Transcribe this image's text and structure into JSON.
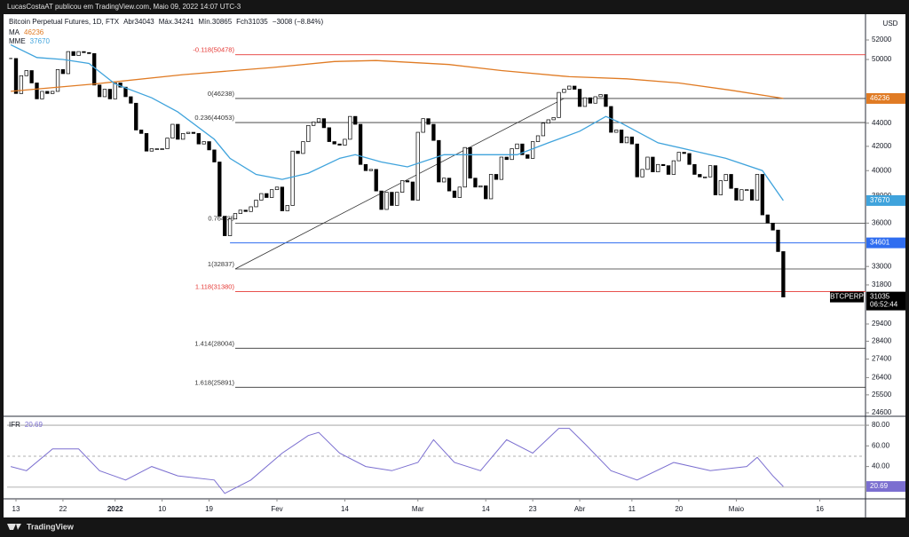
{
  "header": "LucasCostaAT publicou em TradingView.com, Maio 09, 2022 14:07 UTC-3",
  "footer": "TradingView",
  "chart_data": {
    "type": "candlestick",
    "title": "Bitcoin Perpetual Futures, 1D, FTX",
    "legend_values": [
      "Abr34043",
      "Máx.34241",
      "Mín.30865",
      "Fch31035",
      "−3008 (−8.84%)"
    ],
    "symbol": "BTCPERP",
    "countdown": "06:52:44",
    "currency": "USD",
    "closes": [
      50100,
      46700,
      48400,
      48900,
      47700,
      46200,
      46900,
      46700,
      46900,
      49000,
      48600,
      50800,
      50400,
      50800,
      50700,
      50600,
      47500,
      46400,
      47100,
      46200,
      47700,
      47300,
      46400,
      45800,
      43400,
      43100,
      41600,
      41800,
      41800,
      41800,
      42700,
      43900,
      42600,
      43100,
      43200,
      43100,
      42200,
      42400,
      41700,
      40700,
      36500,
      35100,
      36300,
      36700,
      36950,
      36850,
      37200,
      37700,
      38200,
      37900,
      38500,
      38700,
      36900,
      37300,
      41600,
      41400,
      42400,
      43800,
      44100,
      44400,
      43600,
      42400,
      42200,
      42100,
      42600,
      44600,
      43900,
      40500,
      40000,
      40100,
      38400,
      37000,
      38300,
      37300,
      38300,
      39200,
      39100,
      37700,
      43200,
      44400,
      43900,
      42500,
      39100,
      39400,
      38400,
      37900,
      38700,
      41900,
      39400,
      38700,
      38800,
      37800,
      39700,
      39300,
      41100,
      40900,
      41800,
      42200,
      41300,
      41000,
      42400,
      42900,
      44000,
      44300,
      44500,
      46800,
      47100,
      47400,
      47100,
      45500,
      46300,
      45800,
      46400,
      46600,
      45500,
      43200,
      43400,
      42300,
      42800,
      42200,
      39500,
      40100,
      41100,
      39900,
      40500,
      40400,
      39700,
      40800,
      41500,
      41400,
      40500,
      39700,
      39500,
      39500,
      40400,
      38100,
      39200,
      39700,
      38600,
      37700,
      38500,
      38500,
      37700,
      39700,
      36600,
      36000,
      35500,
      34000,
      31035
    ],
    "up_color": "#ffffff",
    "down_color": "#000000",
    "log_scale": true,
    "ylim": [
      24470,
      54760
    ],
    "yticks": [
      52000,
      50000,
      44000,
      42000,
      40000,
      38000,
      36000,
      33000,
      31800,
      29400,
      28400,
      27400,
      26400,
      25500,
      24600
    ],
    "xlim": [
      -0.7,
      163.75
    ],
    "xticks": [
      {
        "value": 1,
        "label": "13"
      },
      {
        "value": 10,
        "label": "22"
      },
      {
        "value": 20,
        "label": "2022",
        "bold": true
      },
      {
        "value": 29,
        "label": "10"
      },
      {
        "value": 38,
        "label": "19"
      },
      {
        "value": 51,
        "label": "Fev"
      },
      {
        "value": 64,
        "label": "14"
      },
      {
        "value": 78,
        "label": "Mar"
      },
      {
        "value": 91,
        "label": "14"
      },
      {
        "value": 100,
        "label": "23"
      },
      {
        "value": 109,
        "label": "Abr"
      },
      {
        "value": 119,
        "label": "11"
      },
      {
        "value": 128,
        "label": "20"
      },
      {
        "value": 139,
        "label": "Maio"
      },
      {
        "value": 155,
        "label": "16"
      }
    ],
    "moving_averages": [
      {
        "name": "MA",
        "value": 46236,
        "color": "#e07b24",
        "x": [
          0,
          16,
          33,
          50,
          62,
          70,
          84,
          94,
          107,
          118,
          128,
          138,
          148
        ],
        "values": [
          46900,
          47600,
          48500,
          49200,
          49800,
          49900,
          49500,
          48900,
          48300,
          48100,
          47700,
          47000,
          46236
        ]
      },
      {
        "name": "MME",
        "value": 37670,
        "color": "#3fa3dc",
        "x": [
          0,
          5,
          10,
          15,
          20,
          27,
          32,
          39,
          42,
          47,
          52,
          57,
          63,
          66,
          71,
          76,
          83,
          90,
          97,
          103,
          109,
          114,
          117,
          124,
          131,
          137,
          144,
          148
        ],
        "values": [
          51500,
          50200,
          50000,
          49600,
          47600,
          46300,
          45000,
          42600,
          41000,
          39700,
          39300,
          39800,
          41000,
          41300,
          40700,
          40300,
          41300,
          41300,
          41300,
          42300,
          43300,
          44600,
          44000,
          42300,
          41600,
          41000,
          40000,
          37670
        ]
      }
    ],
    "fib": {
      "x": [
        43,
        106
      ],
      "levels": [
        {
          "label": "-0.118(50478)",
          "value": 50478,
          "color": "#e53935"
        },
        {
          "label": "0(46238)",
          "value": 46238,
          "color": "#333333"
        },
        {
          "label": "0.236(44053)",
          "value": 44053,
          "color": "#333333"
        },
        {
          "label": "0.764(35",
          "value": 35999,
          "color": "#333333"
        },
        {
          "label": "1(32837)",
          "value": 32837,
          "color": "#333333"
        },
        {
          "label": "1.118(31380)",
          "value": 31380,
          "color": "#e53935"
        },
        {
          "label": "1.414(28004)",
          "value": 28004,
          "color": "#333333"
        },
        {
          "label": "1.618(25891)",
          "value": 25891,
          "color": "#333333"
        }
      ]
    },
    "hline": {
      "value": 34601,
      "x": 42,
      "color": "#2f6df0"
    },
    "rsi": {
      "name": "IFR",
      "value": 20.69,
      "color": "#7b6fd0",
      "ylim": [
        9.6,
        87.8
      ],
      "yticks": [
        {
          "value": 80,
          "label": "80.00"
        },
        {
          "value": 60,
          "label": "60.00"
        },
        {
          "value": 40,
          "label": "40.00"
        }
      ],
      "levels": [
        80,
        50,
        20
      ],
      "x": [
        0,
        3,
        8,
        13,
        17,
        22,
        27,
        32,
        39,
        41,
        46,
        52,
        57,
        59,
        63,
        68,
        73,
        78,
        81,
        85,
        90,
        95,
        100,
        105,
        107,
        110,
        115,
        120,
        127,
        134,
        141,
        143,
        146,
        148
      ],
      "values": [
        40,
        36,
        57,
        57,
        36,
        27,
        40,
        31,
        27,
        14,
        27,
        53,
        70,
        73,
        53,
        40,
        36,
        44,
        66,
        44,
        36,
        66,
        53,
        77,
        77,
        62,
        36,
        27,
        44,
        36,
        40,
        49,
        31,
        20.69
      ]
    }
  }
}
